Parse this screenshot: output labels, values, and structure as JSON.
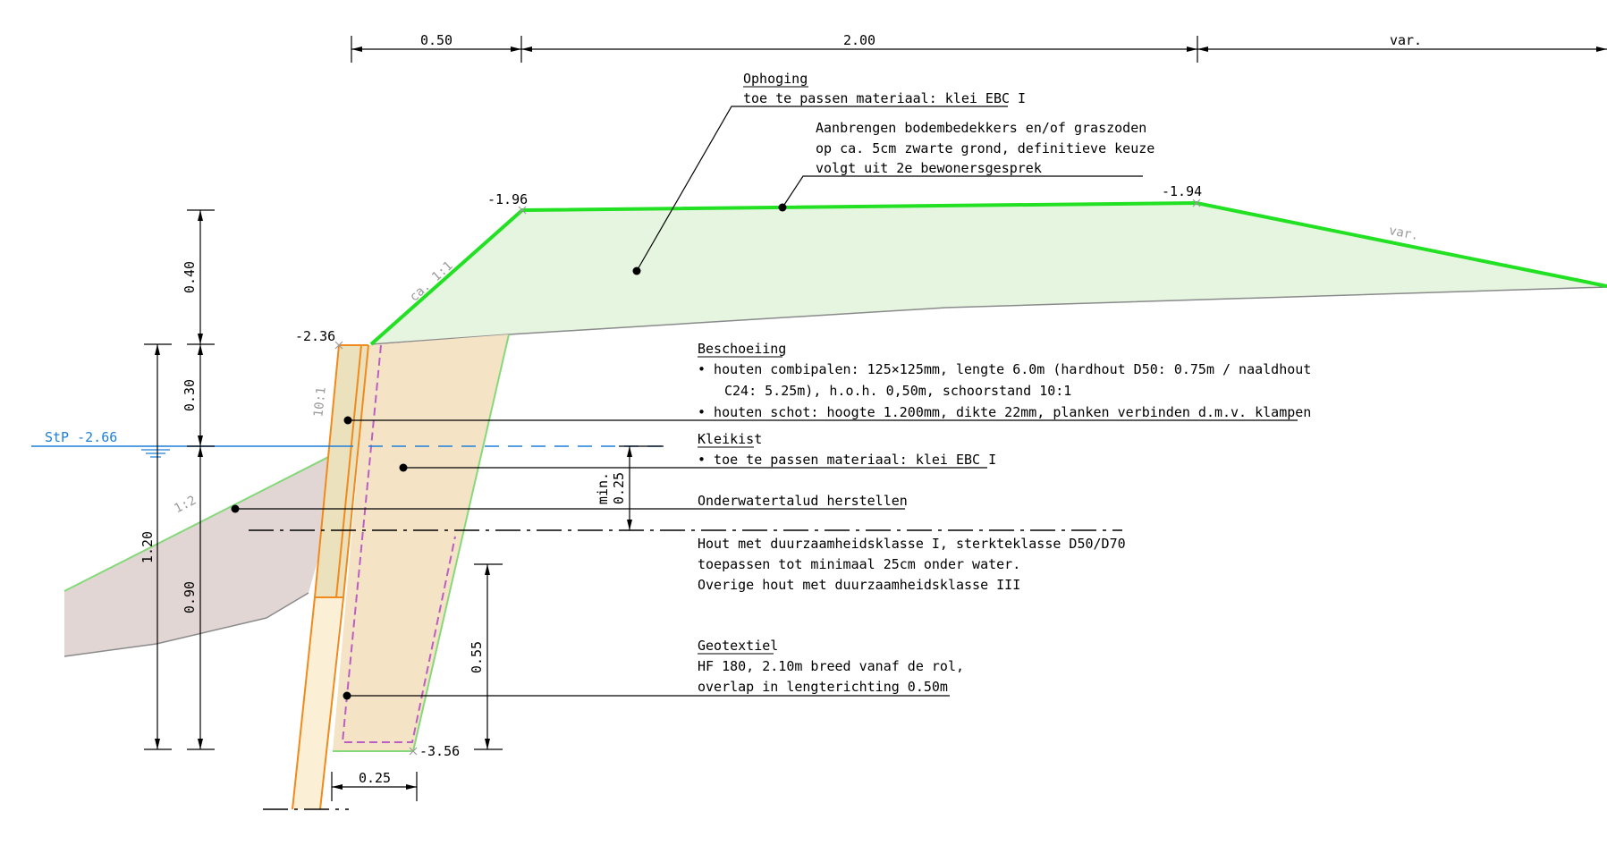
{
  "dimensions": {
    "top_1": "0.50",
    "top_2": "2.00",
    "top_3": "var.",
    "left_040": "0.40",
    "left_030": "0.30",
    "left_090": "0.90",
    "left_120": "1.20",
    "min_label": "min.",
    "min_value": "0.25",
    "right_055": "0.55",
    "bottom_025": "0.25"
  },
  "levels": {
    "l_196": "-1.96",
    "l_194": "-1.94",
    "l_236": "-2.36",
    "l_356": "-3.56",
    "water": "StP -2.66"
  },
  "slopes": {
    "slope_1_1": "ca. 1:1",
    "slope_var": "var.",
    "slope_10_1": "10:1",
    "slope_1_2": "1:2"
  },
  "notes": {
    "ophoging_title": "Ophoging",
    "ophoging_line1": "toe te passen materiaal: klei EBC I",
    "bodem_line1": "Aanbrengen bodembedekkers en/of graszoden",
    "bodem_line2": "op ca. 5cm zwarte grond, definitieve keuze",
    "bodem_line3": "volgt uit 2e bewonersgesprek",
    "beschoeiing_title": "Beschoeiing",
    "beschoeiing_line1": "•  houten combipalen: 125×125mm, lengte 6.0m (hardhout D50: 0.75m / naaldhout",
    "beschoeiing_line2": "C24: 5.25m), h.o.h. 0,50m, schoorstand 10:1",
    "beschoeiing_line3": "•  houten schot: hoogte 1.200mm, dikte 22mm, planken verbinden d.m.v. klampen",
    "kleikist_title": "Kleikist",
    "kleikist_line1": "•  toe te passen materiaal: klei EBC I",
    "onderwater_title": "Onderwatertalud herstellen",
    "hout_line1": "Hout met duurzaamheidsklasse I, sterkteklasse D50/D70",
    "hout_line2": "toepassen tot minimaal 25cm onder water.",
    "hout_line3": "Overige hout met duurzaamheidsklasse III",
    "geotextiel_title": "Geotextiel",
    "geotextiel_line1": "HF 180, 2.10m breed vanaf de rol,",
    "geotextiel_line2": "overlap in lengterichting 0.50m"
  },
  "colors": {
    "fill_ophoging": "#e5f5e0",
    "fill_kleikist": "#f5e3c6",
    "fill_bodem": "#e2d6d4",
    "fill_paal": "#fbf0d5",
    "line_green_bright": "#22e022",
    "line_green_light": "#86d97a",
    "line_orange": "#f08a1c",
    "line_purple": "#b95fc4",
    "line_blue": "#1e7fd8",
    "line_gray": "#8a8a8a"
  }
}
